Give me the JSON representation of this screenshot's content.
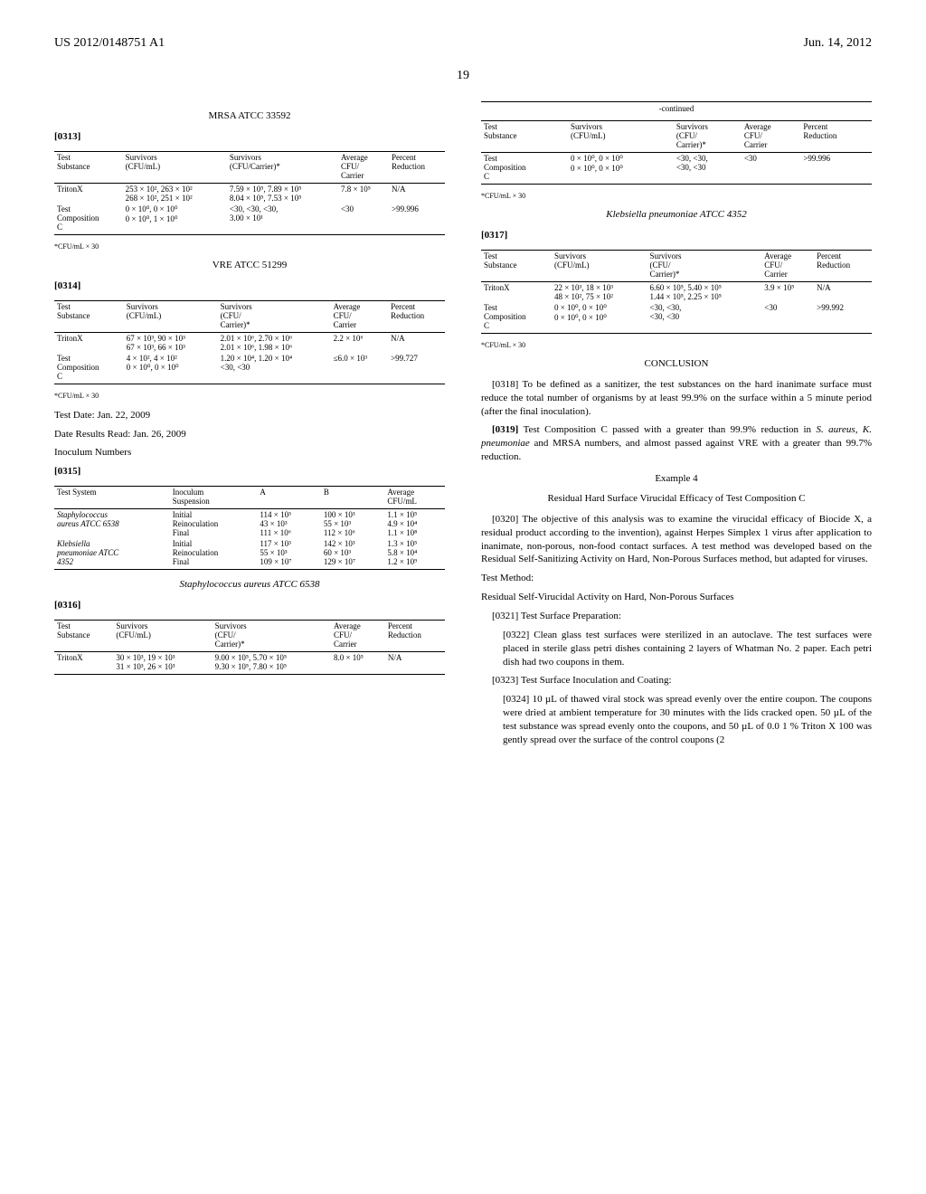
{
  "header": {
    "left": "US 2012/0148751 A1",
    "right": "Jun. 14, 2012"
  },
  "page_number": "19",
  "left": {
    "title1": "MRSA ATCC 33592",
    "para313": "[0313]",
    "table1": {
      "headers": [
        "Test\nSubstance",
        "Survivors\n(CFU/mL)",
        "Survivors\n(CFU/Carrier)*",
        "Average\nCFU/\nCarrier",
        "Percent\nReduction"
      ],
      "rows": [
        [
          "TritonX",
          "253 × 10², 263 × 10²\n268 × 10², 251 × 10²",
          "7.59 × 10⁵, 7.89 × 10⁵\n8.04 × 10⁵, 7.53 × 10⁵",
          "7.8 × 10⁵",
          "N/A"
        ],
        [
          "Test\nComposition\nC",
          "0 × 10⁰, 0 × 10⁰\n0 × 10⁰, 1 × 10⁰",
          "<30, <30, <30,\n3.00 × 10¹",
          "<30",
          ">99.996"
        ]
      ],
      "footnote": "*CFU/mL × 30"
    },
    "title2": "VRE ATCC 51299",
    "para314": "[0314]",
    "table2": {
      "headers": [
        "Test\nSubstance",
        "Survivors\n(CFU/mL)",
        "Survivors\n(CFU/\nCarrier)*",
        "Average\nCFU/\nCarrier",
        "Percent\nReduction"
      ],
      "rows": [
        [
          "TritonX",
          "67 × 10³, 90 × 10³\n67 × 10³, 66 × 10³",
          "2.01 × 10⁶, 2.70 × 10⁶\n2.01 × 10⁶, 1.98 × 10⁶",
          "2.2 × 10⁶",
          "N/A"
        ],
        [
          "Test\nComposition\nC",
          "4 × 10², 4 × 10²\n0 × 10⁰, 0 × 10⁰",
          "1.20 × 10⁴, 1.20 × 10⁴\n<30, <30",
          "≤6.0 × 10³",
          ">99.727"
        ]
      ],
      "footnote": "*CFU/mL × 30"
    },
    "dates_line1": "Test Date: Jan. 22, 2009",
    "dates_line2": "Date Results Read: Jan. 26, 2009",
    "dates_line3": "Inoculum Numbers",
    "para315": "[0315]",
    "table3": {
      "headers": [
        "Test System",
        "Inoculum\nSuspension",
        "A",
        "B",
        "Average\nCFU/mL"
      ],
      "rows": [
        [
          "Staphylococcus\naureus ATCC 6538",
          "Initial\nReinoculation\nFinal",
          "114 × 10³\n43 × 10³\n111 × 10⁶",
          "100 × 10³\n55 × 10³\n112 × 10⁶",
          "1.1 × 10⁵\n4.9 × 10⁴\n1.1 × 10⁸"
        ],
        [
          "Klebsiella\npneumoniae ATCC\n4352",
          "Initial\nReinoculation\nFinal",
          "117 × 10³\n55 × 10³\n109 × 10⁷",
          "142 × 10³\n60 × 10³\n129 × 10⁷",
          "1.3 × 10⁵\n5.8 × 10⁴\n1.2 × 10⁹"
        ]
      ]
    },
    "title3": "Staphylococcus aureus ATCC 6538",
    "para316": "[0316]",
    "table4": {
      "headers": [
        "Test\nSubstance",
        "Survivors\n(CFU/mL)",
        "Survivors\n(CFU/\nCarrier)*",
        "Average\nCFU/\nCarrier",
        "Percent\nReduction"
      ],
      "rows": [
        [
          "TritonX",
          "30 × 10³, 19 × 10³\n31 × 10³, 26 × 10³",
          "9.00 × 10⁵, 5.70 × 10⁵\n9.30 × 10⁵, 7.80 × 10⁵",
          "8.0 × 10⁵",
          "N/A"
        ]
      ]
    }
  },
  "right": {
    "continued": "-continued",
    "tableC": {
      "headers": [
        "Test\nSubstance",
        "Survivors\n(CFU/mL)",
        "Survivors\n(CFU/\nCarrier)*",
        "Average\nCFU/\nCarrier",
        "Percent\nReduction"
      ],
      "rows": [
        [
          "Test\nComposition\nC",
          "0 × 10⁰, 0 × 10⁰\n0 × 10⁰, 0 × 10⁰",
          "<30, <30,\n<30, <30",
          "<30",
          ">99.996"
        ]
      ],
      "footnote": "*CFU/mL × 30"
    },
    "title4": "Klebsiella pneumoniae ATCC 4352",
    "para317": "[0317]",
    "table5": {
      "headers": [
        "Test\nSubstance",
        "Survivors\n(CFU/mL)",
        "Survivors\n(CFU/\nCarrier)*",
        "Average\nCFU/\nCarrier",
        "Percent\nReduction"
      ],
      "rows": [
        [
          "TritonX",
          "22 × 10³, 18 × 10³\n48 × 10², 75 × 10²",
          "6.60 × 10⁵, 5.40 × 10⁵\n1.44 × 10⁵, 2.25 × 10⁵",
          "3.9 × 10⁵",
          "N/A"
        ],
        [
          "Test\nComposition\nC",
          "0 × 10⁰, 0 × 10⁰\n0 × 10⁰, 0 × 10⁰",
          "<30, <30,\n<30, <30",
          "<30",
          ">99.992"
        ]
      ],
      "footnote": "*CFU/mL × 30"
    },
    "conclusion_head": "CONCLUSION",
    "para318": "[0318]    To be defined as a sanitizer, the test substances on the hard inanimate surface must reduce the total number of organisms by at least 99.9% on the surface within a 5 minute period (after the final inoculation).",
    "para319_num": "[0319]",
    "para319_text": "   Test Composition C passed with a greater than 99.9% reduction in ",
    "para319_italic": "S. aureus, K. pneumoniae",
    "para319_text2": " and MRSA numbers, and almost passed against VRE with a greater than 99.7% reduction.",
    "example_head": "Example 4",
    "example_sub": "Residual Hard Surface Virucidal Efficacy of Test Composition C",
    "para320": "[0320]    The objective of this analysis was to examine the virucidal efficacy of Biocide X, a residual product according to the invention), against Herpes Simplex 1 virus after application to inanimate, non-porous, non-food contact surfaces. A test method was developed based on the Residual Self-Sanitizing Activity on Hard, Non-Porous Surfaces method, but adapted for viruses.",
    "test_method_head": "Test Method:",
    "residual_head": "Residual Self-Virucidal Activity on Hard, Non-Porous Surfaces",
    "para321": "[0321]    Test Surface Preparation:",
    "para322": "[0322]    Clean glass test surfaces were sterilized in an autoclave. The test surfaces were placed in sterile glass petri dishes containing 2 layers of Whatman No. 2 paper. Each petri dish had two coupons in them.",
    "para323": "[0323]    Test Surface Inoculation and Coating:",
    "para324": "[0324]    10 µL of thawed viral stock was spread evenly over the entire coupon. The coupons were dried at ambient temperature for 30 minutes with the lids cracked open. 50 µL of the test substance was spread evenly onto the coupons, and 50 µL of 0.0 1 % Triton X 100 was gently spread over the surface of the control coupons (2"
  }
}
